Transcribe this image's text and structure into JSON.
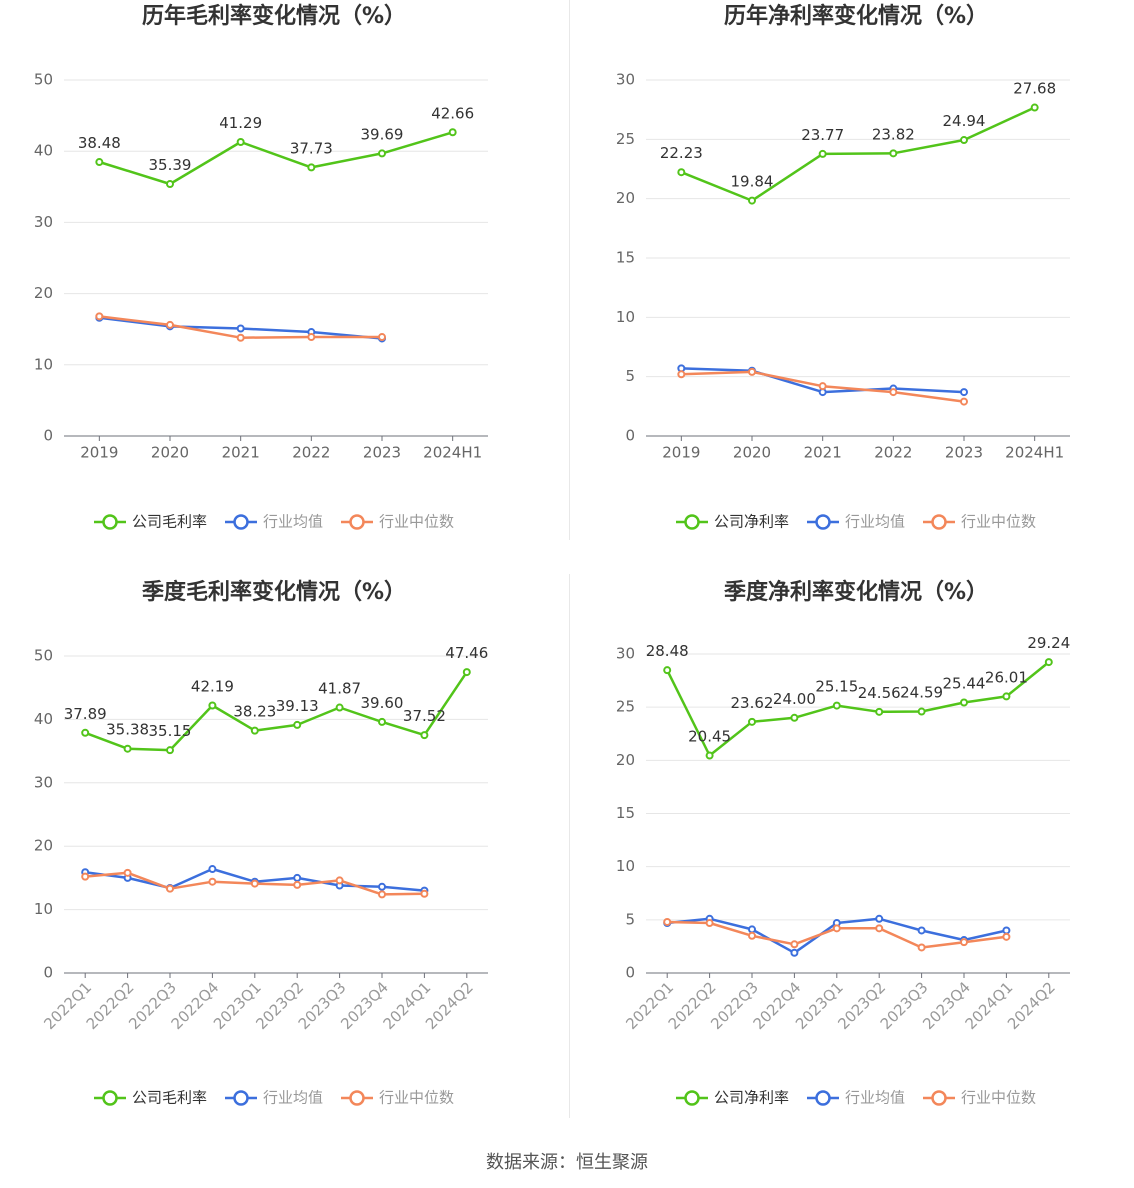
{
  "source": "数据来源：恒生聚源",
  "colors": {
    "company": "#52c41a",
    "avg": "#3c6fdd",
    "median": "#f3875a",
    "grid": "#e6e6e6",
    "axis": "#6e7079",
    "label": "#333333",
    "tick": "#666666"
  },
  "legend_symbols": {
    "company": "circle-line-icon",
    "avg": "circle-line-icon",
    "median": "circle-line-icon"
  },
  "chart_data": [
    {
      "type": "line",
      "title": "历年毛利率变化情况（%）",
      "categories": [
        "2019",
        "2020",
        "2021",
        "2022",
        "2023",
        "2024H1"
      ],
      "ylim": [
        0,
        50
      ],
      "yticks": [
        0,
        10,
        20,
        30,
        40,
        50
      ],
      "grid": true,
      "legend_position": "bottom",
      "rotate_x_labels": false,
      "series": [
        {
          "name": "公司毛利率",
          "role": "company",
          "values": [
            38.48,
            35.39,
            41.29,
            37.73,
            39.69,
            42.66
          ],
          "labels": [
            "38.48",
            "35.39",
            "41.29",
            "37.73",
            "39.69",
            "42.66"
          ]
        },
        {
          "name": "行业均值",
          "role": "avg",
          "values": [
            16.6,
            15.4,
            15.1,
            14.6,
            13.7,
            null
          ]
        },
        {
          "name": "行业中位数",
          "role": "median",
          "values": [
            16.8,
            15.6,
            13.8,
            13.9,
            13.9,
            null
          ]
        }
      ]
    },
    {
      "type": "line",
      "title": "历年净利率变化情况（%）",
      "categories": [
        "2019",
        "2020",
        "2021",
        "2022",
        "2023",
        "2024H1"
      ],
      "ylim": [
        0,
        30
      ],
      "yticks": [
        0,
        5,
        10,
        15,
        20,
        25,
        30
      ],
      "grid": true,
      "legend_position": "bottom",
      "rotate_x_labels": false,
      "series": [
        {
          "name": "公司净利率",
          "role": "company",
          "values": [
            22.23,
            19.84,
            23.77,
            23.82,
            24.94,
            27.68
          ],
          "labels": [
            "22.23",
            "19.84",
            "23.77",
            "23.82",
            "24.94",
            "27.68"
          ]
        },
        {
          "name": "行业均值",
          "role": "avg",
          "values": [
            5.7,
            5.5,
            3.7,
            4.0,
            3.7,
            null
          ]
        },
        {
          "name": "行业中位数",
          "role": "median",
          "values": [
            5.2,
            5.4,
            4.2,
            3.7,
            2.9,
            null
          ]
        }
      ]
    },
    {
      "type": "line",
      "title": "季度毛利率变化情况（%）",
      "categories": [
        "2022Q1",
        "2022Q2",
        "2022Q3",
        "2022Q4",
        "2023Q1",
        "2023Q2",
        "2023Q3",
        "2023Q4",
        "2024Q1",
        "2024Q2"
      ],
      "ylim": [
        0,
        50
      ],
      "yticks": [
        0,
        10,
        20,
        30,
        40,
        50
      ],
      "grid": true,
      "legend_position": "bottom",
      "rotate_x_labels": true,
      "series": [
        {
          "name": "公司毛利率",
          "role": "company",
          "values": [
            37.89,
            35.38,
            35.15,
            42.19,
            38.23,
            39.13,
            41.87,
            39.6,
            37.52,
            47.46
          ],
          "labels": [
            "37.89",
            "35.38",
            "35.15",
            "42.19",
            "38.23",
            "39.13",
            "41.87",
            "39.60",
            "37.52",
            "47.46"
          ]
        },
        {
          "name": "行业均值",
          "role": "avg",
          "values": [
            15.9,
            15.0,
            13.4,
            16.4,
            14.4,
            15.0,
            13.8,
            13.6,
            13.0,
            null
          ]
        },
        {
          "name": "行业中位数",
          "role": "median",
          "values": [
            15.2,
            15.8,
            13.3,
            14.4,
            14.1,
            13.9,
            14.6,
            12.4,
            12.5,
            null
          ]
        }
      ]
    },
    {
      "type": "line",
      "title": "季度净利率变化情况（%）",
      "categories": [
        "2022Q1",
        "2022Q2",
        "2022Q3",
        "2022Q4",
        "2023Q1",
        "2023Q2",
        "2023Q3",
        "2023Q4",
        "2024Q1",
        "2024Q2"
      ],
      "ylim": [
        0,
        30
      ],
      "yticks": [
        0,
        5,
        10,
        15,
        20,
        25,
        30
      ],
      "grid": true,
      "legend_position": "bottom",
      "rotate_x_labels": true,
      "series": [
        {
          "name": "公司净利率",
          "role": "company",
          "values": [
            28.48,
            20.45,
            23.62,
            24.0,
            25.15,
            24.56,
            24.59,
            25.44,
            26.01,
            29.24
          ],
          "labels": [
            "28.48",
            "20.45",
            "23.62",
            "24.00",
            "25.15",
            "24.56",
            "24.59",
            "25.44",
            "26.01",
            "29.24"
          ]
        },
        {
          "name": "行业均值",
          "role": "avg",
          "values": [
            4.7,
            5.1,
            4.1,
            1.9,
            4.7,
            5.1,
            4.0,
            3.1,
            4.0,
            null
          ]
        },
        {
          "name": "行业中位数",
          "role": "median",
          "values": [
            4.8,
            4.7,
            3.5,
            2.7,
            4.2,
            4.2,
            2.4,
            2.9,
            3.4,
            null
          ]
        }
      ]
    }
  ]
}
